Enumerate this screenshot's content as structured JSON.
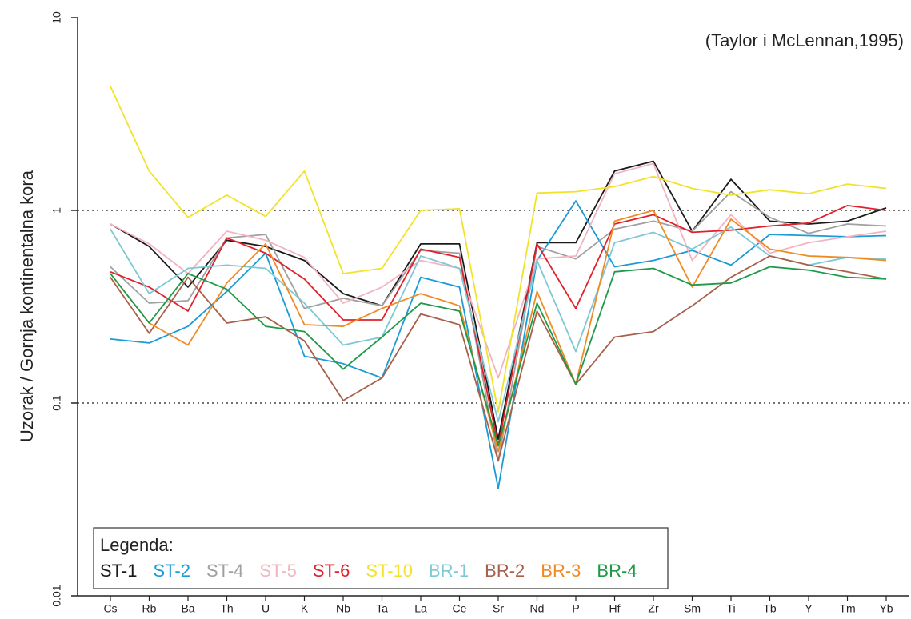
{
  "chart_data": {
    "type": "line",
    "y_label": "Uzorak / Gornja kontinentalna kora",
    "annotation": "(Taylor i McLennan,1995)",
    "legend_title": "Legenda:",
    "log_y": true,
    "ylim": [
      0.01,
      10
    ],
    "yticks": [
      0.01,
      0.1,
      1,
      10
    ],
    "hlines": [
      1,
      0.1
    ],
    "categories": [
      "Cs",
      "Rb",
      "Ba",
      "Th",
      "U",
      "K",
      "Nb",
      "Ta",
      "La",
      "Ce",
      "Sr",
      "Nd",
      "P",
      "Hf",
      "Zr",
      "Sm",
      "Ti",
      "Tb",
      "Y",
      "Tm",
      "Yb"
    ],
    "series": [
      {
        "name": "ST-1",
        "color": "#1a1a1a",
        "values": [
          0.85,
          0.65,
          0.4,
          0.7,
          0.65,
          0.55,
          0.37,
          0.32,
          0.67,
          0.67,
          0.065,
          0.68,
          0.68,
          1.6,
          1.8,
          0.78,
          1.45,
          0.88,
          0.85,
          0.88,
          1.03
        ]
      },
      {
        "name": "ST-2",
        "color": "#1a9ad6",
        "values": [
          0.215,
          0.205,
          0.25,
          0.38,
          0.6,
          0.175,
          0.16,
          0.135,
          0.45,
          0.4,
          0.036,
          0.55,
          1.12,
          0.51,
          0.55,
          0.62,
          0.52,
          0.75,
          0.74,
          0.73,
          0.74
        ]
      },
      {
        "name": "ST-4",
        "color": "#a0a0a0",
        "values": [
          0.51,
          0.33,
          0.34,
          0.72,
          0.75,
          0.31,
          0.35,
          0.32,
          0.62,
          0.6,
          0.05,
          0.65,
          0.56,
          0.8,
          0.88,
          0.78,
          1.25,
          0.92,
          0.76,
          0.85,
          0.83
        ]
      },
      {
        "name": "ST-5",
        "color": "#f2b4c0",
        "values": [
          0.85,
          0.67,
          0.47,
          0.78,
          0.7,
          0.57,
          0.33,
          0.4,
          0.55,
          0.5,
          0.135,
          0.56,
          0.58,
          1.55,
          1.75,
          0.55,
          0.95,
          0.6,
          0.68,
          0.73,
          0.78
        ]
      },
      {
        "name": "ST-6",
        "color": "#e0202a",
        "values": [
          0.48,
          0.4,
          0.3,
          0.72,
          0.6,
          0.44,
          0.27,
          0.27,
          0.63,
          0.57,
          0.06,
          0.67,
          0.31,
          0.85,
          0.95,
          0.77,
          0.79,
          0.83,
          0.86,
          1.06,
          1.0
        ]
      },
      {
        "name": "ST-10",
        "color": "#f2e22a",
        "values": [
          4.4,
          1.6,
          0.92,
          1.2,
          0.93,
          1.6,
          0.47,
          0.5,
          1.0,
          1.02,
          0.09,
          1.23,
          1.25,
          1.33,
          1.5,
          1.3,
          1.2,
          1.28,
          1.22,
          1.37,
          1.3
        ]
      },
      {
        "name": "BR-1",
        "color": "#7ec8d4",
        "values": [
          0.8,
          0.37,
          0.5,
          0.52,
          0.5,
          0.33,
          0.2,
          0.22,
          0.58,
          0.5,
          0.08,
          0.55,
          0.185,
          0.68,
          0.77,
          0.63,
          0.82,
          0.58,
          0.52,
          0.57,
          0.56
        ]
      },
      {
        "name": "BR-2",
        "color": "#a8604a",
        "values": [
          0.45,
          0.23,
          0.45,
          0.26,
          0.28,
          0.21,
          0.103,
          0.135,
          0.29,
          0.255,
          0.05,
          0.3,
          0.125,
          0.22,
          0.235,
          0.32,
          0.45,
          0.58,
          0.52,
          0.48,
          0.44
        ]
      },
      {
        "name": "BR-3",
        "color": "#f08a24",
        "values": [
          0.47,
          0.26,
          0.2,
          0.42,
          0.67,
          0.255,
          0.25,
          0.31,
          0.37,
          0.32,
          0.056,
          0.38,
          0.125,
          0.88,
          1.0,
          0.4,
          0.9,
          0.63,
          0.58,
          0.57,
          0.55
        ]
      },
      {
        "name": "BR-4",
        "color": "#1e9a48",
        "values": [
          0.47,
          0.26,
          0.47,
          0.39,
          0.25,
          0.235,
          0.15,
          0.22,
          0.33,
          0.3,
          0.06,
          0.33,
          0.125,
          0.48,
          0.5,
          0.41,
          0.42,
          0.51,
          0.49,
          0.45,
          0.44
        ]
      }
    ]
  }
}
